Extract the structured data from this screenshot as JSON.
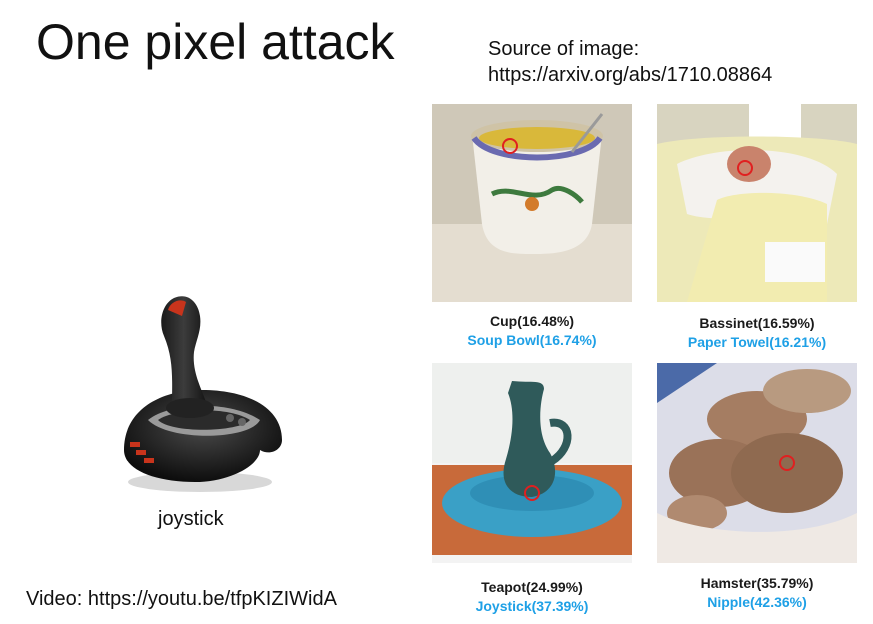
{
  "title": "One pixel attack",
  "source": {
    "line1": "Source of image:",
    "line2": "https://arxiv.org/abs/1710.08864"
  },
  "joystick": {
    "label": "joystick"
  },
  "video": "Video: https://youtu.be/tfpKIZIWidA",
  "examples": [
    {
      "subject": "cup",
      "original": "Cup(16.48%)",
      "adversarial": "Soup Bowl(16.74%)"
    },
    {
      "subject": "baby-in-bassinet",
      "original": "Bassinet(16.59%)",
      "adversarial": "Paper Towel(16.21%)"
    },
    {
      "subject": "teapot",
      "original": "Teapot(24.99%)",
      "adversarial": "Joystick(37.39%)"
    },
    {
      "subject": "hamsters",
      "original": "Hamster(35.79%)",
      "adversarial": "Nipple(42.36%)"
    }
  ],
  "colors": {
    "adversarial_label": "#1ea0e6",
    "pixel_marker": "#e02020"
  }
}
